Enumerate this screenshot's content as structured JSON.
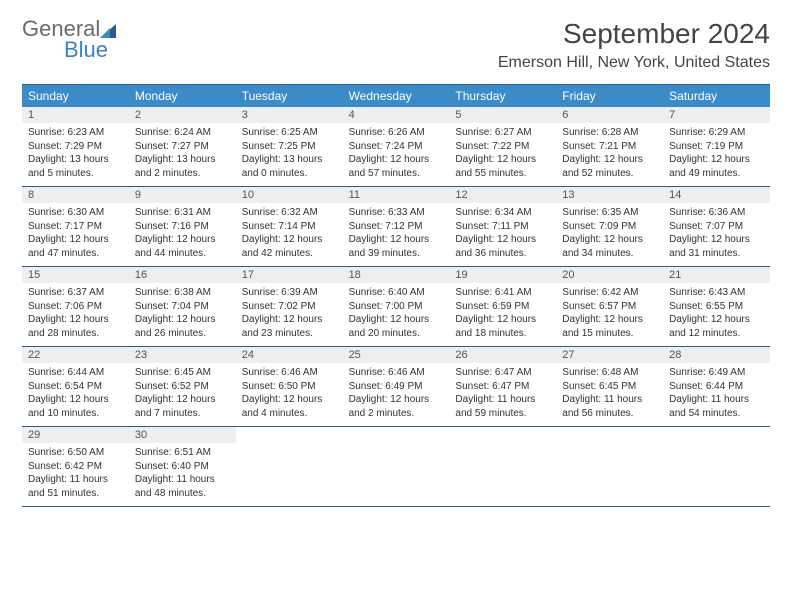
{
  "logo": {
    "part1": "General",
    "part2": "Blue"
  },
  "title": "September 2024",
  "location": "Emerson Hill, New York, United States",
  "colors": {
    "header_bg": "#3b8bc9",
    "border": "#2a5d8a",
    "daynum_bg": "#eceef0",
    "logo_gray": "#6b6b6b",
    "logo_blue": "#3b82c4"
  },
  "dayNames": [
    "Sunday",
    "Monday",
    "Tuesday",
    "Wednesday",
    "Thursday",
    "Friday",
    "Saturday"
  ],
  "days": [
    {
      "n": "1",
      "sunrise": "6:23 AM",
      "sunset": "7:29 PM",
      "daylight": "13 hours and 5 minutes."
    },
    {
      "n": "2",
      "sunrise": "6:24 AM",
      "sunset": "7:27 PM",
      "daylight": "13 hours and 2 minutes."
    },
    {
      "n": "3",
      "sunrise": "6:25 AM",
      "sunset": "7:25 PM",
      "daylight": "13 hours and 0 minutes."
    },
    {
      "n": "4",
      "sunrise": "6:26 AM",
      "sunset": "7:24 PM",
      "daylight": "12 hours and 57 minutes."
    },
    {
      "n": "5",
      "sunrise": "6:27 AM",
      "sunset": "7:22 PM",
      "daylight": "12 hours and 55 minutes."
    },
    {
      "n": "6",
      "sunrise": "6:28 AM",
      "sunset": "7:21 PM",
      "daylight": "12 hours and 52 minutes."
    },
    {
      "n": "7",
      "sunrise": "6:29 AM",
      "sunset": "7:19 PM",
      "daylight": "12 hours and 49 minutes."
    },
    {
      "n": "8",
      "sunrise": "6:30 AM",
      "sunset": "7:17 PM",
      "daylight": "12 hours and 47 minutes."
    },
    {
      "n": "9",
      "sunrise": "6:31 AM",
      "sunset": "7:16 PM",
      "daylight": "12 hours and 44 minutes."
    },
    {
      "n": "10",
      "sunrise": "6:32 AM",
      "sunset": "7:14 PM",
      "daylight": "12 hours and 42 minutes."
    },
    {
      "n": "11",
      "sunrise": "6:33 AM",
      "sunset": "7:12 PM",
      "daylight": "12 hours and 39 minutes."
    },
    {
      "n": "12",
      "sunrise": "6:34 AM",
      "sunset": "7:11 PM",
      "daylight": "12 hours and 36 minutes."
    },
    {
      "n": "13",
      "sunrise": "6:35 AM",
      "sunset": "7:09 PM",
      "daylight": "12 hours and 34 minutes."
    },
    {
      "n": "14",
      "sunrise": "6:36 AM",
      "sunset": "7:07 PM",
      "daylight": "12 hours and 31 minutes."
    },
    {
      "n": "15",
      "sunrise": "6:37 AM",
      "sunset": "7:06 PM",
      "daylight": "12 hours and 28 minutes."
    },
    {
      "n": "16",
      "sunrise": "6:38 AM",
      "sunset": "7:04 PM",
      "daylight": "12 hours and 26 minutes."
    },
    {
      "n": "17",
      "sunrise": "6:39 AM",
      "sunset": "7:02 PM",
      "daylight": "12 hours and 23 minutes."
    },
    {
      "n": "18",
      "sunrise": "6:40 AM",
      "sunset": "7:00 PM",
      "daylight": "12 hours and 20 minutes."
    },
    {
      "n": "19",
      "sunrise": "6:41 AM",
      "sunset": "6:59 PM",
      "daylight": "12 hours and 18 minutes."
    },
    {
      "n": "20",
      "sunrise": "6:42 AM",
      "sunset": "6:57 PM",
      "daylight": "12 hours and 15 minutes."
    },
    {
      "n": "21",
      "sunrise": "6:43 AM",
      "sunset": "6:55 PM",
      "daylight": "12 hours and 12 minutes."
    },
    {
      "n": "22",
      "sunrise": "6:44 AM",
      "sunset": "6:54 PM",
      "daylight": "12 hours and 10 minutes."
    },
    {
      "n": "23",
      "sunrise": "6:45 AM",
      "sunset": "6:52 PM",
      "daylight": "12 hours and 7 minutes."
    },
    {
      "n": "24",
      "sunrise": "6:46 AM",
      "sunset": "6:50 PM",
      "daylight": "12 hours and 4 minutes."
    },
    {
      "n": "25",
      "sunrise": "6:46 AM",
      "sunset": "6:49 PM",
      "daylight": "12 hours and 2 minutes."
    },
    {
      "n": "26",
      "sunrise": "6:47 AM",
      "sunset": "6:47 PM",
      "daylight": "11 hours and 59 minutes."
    },
    {
      "n": "27",
      "sunrise": "6:48 AM",
      "sunset": "6:45 PM",
      "daylight": "11 hours and 56 minutes."
    },
    {
      "n": "28",
      "sunrise": "6:49 AM",
      "sunset": "6:44 PM",
      "daylight": "11 hours and 54 minutes."
    },
    {
      "n": "29",
      "sunrise": "6:50 AM",
      "sunset": "6:42 PM",
      "daylight": "11 hours and 51 minutes."
    },
    {
      "n": "30",
      "sunrise": "6:51 AM",
      "sunset": "6:40 PM",
      "daylight": "11 hours and 48 minutes."
    }
  ],
  "labels": {
    "sunrise": "Sunrise:",
    "sunset": "Sunset:",
    "daylight": "Daylight:"
  }
}
